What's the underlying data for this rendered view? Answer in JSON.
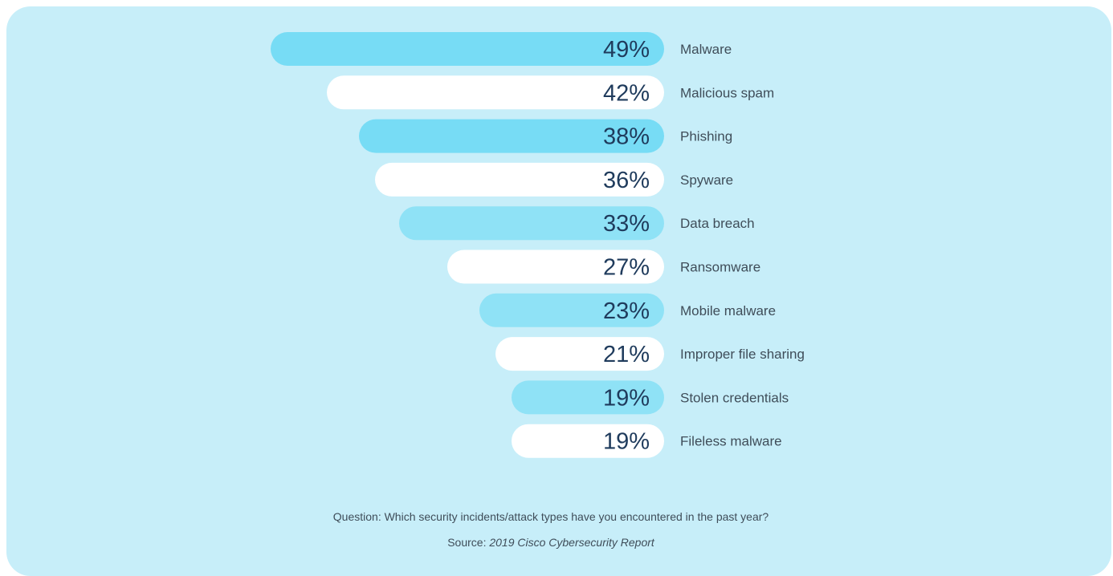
{
  "chart_data": {
    "type": "bar",
    "orientation": "horizontal",
    "categories": [
      "Malware",
      "Malicious spam",
      "Phishing",
      "Spyware",
      "Data breach",
      "Ransomware",
      "Mobile malware",
      "Improper file sharing",
      "Stolen credentials",
      "Fileless malware"
    ],
    "values": [
      49,
      42,
      38,
      36,
      33,
      27,
      23,
      21,
      19,
      19
    ],
    "value_labels": [
      "49%",
      "42%",
      "38%",
      "36%",
      "33%",
      "27%",
      "23%",
      "21%",
      "19%",
      "19%"
    ],
    "unit": "%",
    "bar_colors": [
      "#77dcf5",
      "#ffffff",
      "#77dcf5",
      "#ffffff",
      "#8fe2f6",
      "#ffffff",
      "#8fe2f6",
      "#ffffff",
      "#8fe2f6",
      "#ffffff"
    ],
    "xlim": [
      0,
      100
    ]
  },
  "footnote": {
    "question": "Question: Which security incidents/attack types have you encountered in the past year?",
    "source_prefix": "Source: ",
    "source_title": "2019 Cisco Cybersecurity Report"
  },
  "colors": {
    "panel_bg": "#c7eef9",
    "value_text": "#1f3b5c",
    "label_text": "#3f4d59"
  }
}
